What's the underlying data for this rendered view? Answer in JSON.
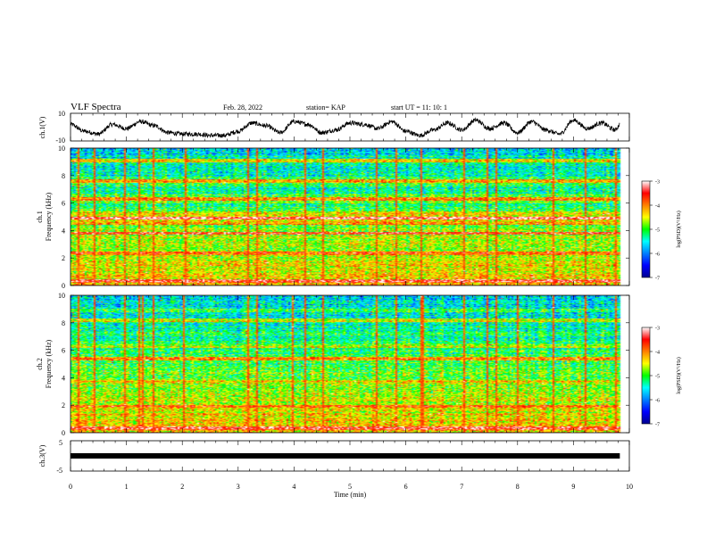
{
  "header": {
    "title": "VLF Spectra",
    "date": "Feb. 28, 2022",
    "station": "station= KAP",
    "start": "start  UT  =   11: 10: 1"
  },
  "axes": {
    "ch1_ylabel": "ch.1(V)",
    "ch1_yticks": [
      "10",
      "-10"
    ],
    "spec1_ylabel_line1": "ch.1",
    "spec1_ylabel_line2": "Frequency (kHz)",
    "spec2_ylabel_line1": "ch.2",
    "spec2_ylabel_line2": "Frequency (kHz)",
    "freq_ticks": [
      "0",
      "2",
      "4",
      "6",
      "8",
      "10"
    ],
    "ch3_ylabel": "ch.3(V)",
    "ch3_yticks": [
      "5",
      "-5"
    ],
    "xlabel": "Time  (min)",
    "x_ticks": [
      "0",
      "1",
      "2",
      "3",
      "4",
      "5",
      "6",
      "7",
      "8",
      "9",
      "10"
    ]
  },
  "colorbar": {
    "label": "log(PSD)(V²/Hz)",
    "ticks": [
      "-3",
      "-4",
      "-5",
      "-6",
      "-7"
    ]
  },
  "chart_data": [
    {
      "type": "line",
      "title": "",
      "ylabel": "ch.1(V)",
      "xlabel": "Time (min)",
      "xlim": [
        0,
        10
      ],
      "ylim": [
        -10,
        10
      ],
      "data_end_min": 9.83,
      "description_points_x": [
        0,
        0.25,
        0.5,
        0.75,
        1.0,
        1.25,
        1.5,
        1.75,
        2.0,
        2.25,
        2.5,
        2.75,
        3.0,
        3.25,
        3.5,
        3.75,
        4.0,
        4.25,
        4.5,
        4.75,
        5.0,
        5.25,
        5.5,
        5.75,
        6.0,
        6.25,
        6.5,
        6.75,
        7.0,
        7.25,
        7.5,
        7.75,
        8.0,
        8.25,
        8.5,
        8.75,
        9.0,
        9.25,
        9.5,
        9.75,
        9.83
      ],
      "description_points_y": [
        2,
        -3,
        -5,
        2,
        -1,
        4,
        1,
        -4,
        -5,
        -5,
        -6,
        -6,
        -3,
        3,
        1,
        -4,
        4,
        2,
        -4,
        -2,
        3,
        2,
        -1,
        4,
        -3,
        -6,
        -2,
        3,
        -2,
        5,
        -1,
        3,
        -4,
        4,
        -2,
        -5,
        5,
        -1,
        3,
        -2,
        2
      ]
    },
    {
      "type": "heatmap",
      "title": "",
      "ylabel": "Frequency (kHz)",
      "channel": "ch.1",
      "xlim": [
        0,
        10
      ],
      "ylim": [
        0,
        10
      ],
      "data_end_min": 9.83,
      "colorscale_log10_psd": [
        -7,
        -3
      ],
      "band_freqs_khz": [
        0.3,
        1.5,
        2.3,
        3.2,
        3.8,
        4.5,
        4.9,
        5.3,
        6.3,
        6.6,
        7.6,
        8.3,
        9.1
      ],
      "band_levels": [
        -3.5,
        -4.2,
        -3.8,
        -5.2,
        -3.7,
        -4.0,
        -3.4,
        -4.3,
        -3.9,
        -5.0,
        -4.1,
        -5.5,
        -4.4
      ],
      "vertical_spike_times_min": [
        0.12,
        0.42,
        0.96,
        1.2,
        1.47,
        2.05,
        3.17,
        3.32,
        4.17,
        4.52,
        5.46,
        5.82,
        6.25,
        7.03,
        7.45,
        7.6,
        8.63,
        9.2,
        9.76
      ]
    },
    {
      "type": "heatmap",
      "title": "",
      "ylabel": "Frequency (kHz)",
      "channel": "ch.2",
      "xlim": [
        0,
        10
      ],
      "ylim": [
        0,
        10
      ],
      "data_end_min": 9.83,
      "colorscale_log10_psd": [
        -7,
        -3
      ],
      "band_freqs_khz": [
        0.3,
        1.2,
        1.9,
        2.5,
        3.1,
        3.7,
        4.6,
        5.4,
        6.3,
        7.3,
        8.2,
        8.9
      ],
      "band_levels": [
        -3.5,
        -4.4,
        -3.9,
        -4.6,
        -5.4,
        -4.3,
        -4.9,
        -4.0,
        -4.6,
        -5.1,
        -4.5,
        -5.0
      ],
      "vertical_spike_times_min": [
        0.12,
        0.42,
        0.96,
        1.23,
        1.28,
        1.47,
        2.0,
        3.17,
        3.32,
        3.95,
        4.17,
        4.52,
        5.46,
        5.82,
        6.25,
        6.3,
        7.03,
        7.45,
        7.6,
        8.0,
        8.63,
        9.2,
        9.76
      ]
    },
    {
      "type": "line",
      "title": "",
      "ylabel": "ch.3(V)",
      "xlabel": "Time (min)",
      "xlim": [
        0,
        10
      ],
      "ylim": [
        -5,
        5
      ],
      "data_end_min": 9.83,
      "value_v": 0
    }
  ]
}
